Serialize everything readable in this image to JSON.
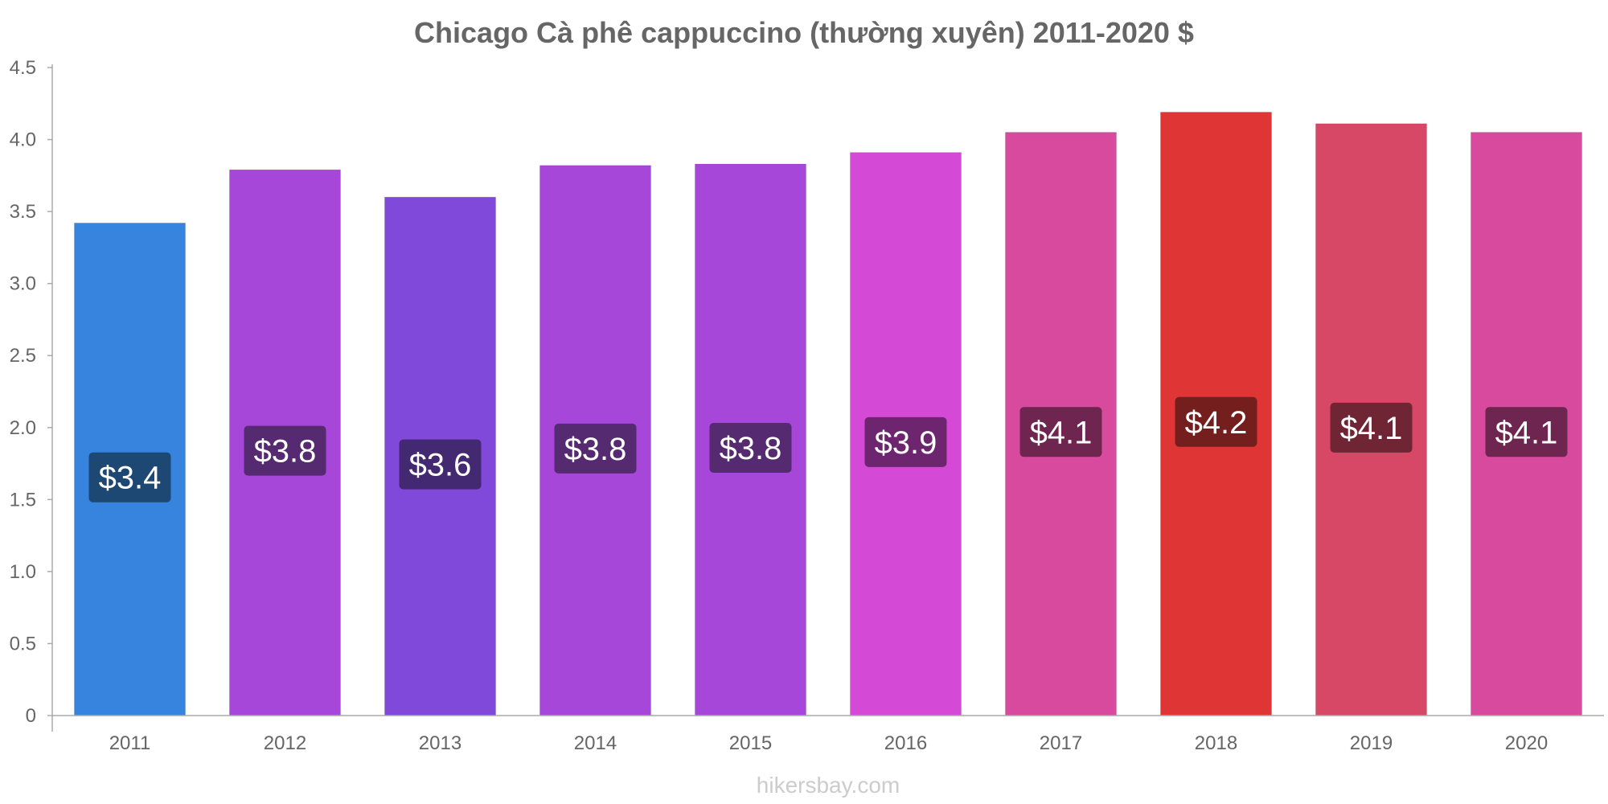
{
  "chart_data": {
    "type": "bar",
    "title": "Chicago Cà phê cappuccino (thường xuyên) 2011-2020 $",
    "categories": [
      "2011",
      "2012",
      "2013",
      "2014",
      "2015",
      "2016",
      "2017",
      "2018",
      "2019",
      "2020"
    ],
    "values": [
      3.42,
      3.79,
      3.6,
      3.82,
      3.83,
      3.91,
      4.05,
      4.19,
      4.11,
      4.05
    ],
    "value_labels": [
      "$3.4",
      "$3.8",
      "$3.6",
      "$3.8",
      "$3.8",
      "$3.9",
      "$4.1",
      "$4.2",
      "$4.1",
      "$4.1"
    ],
    "bar_colors": [
      "#3684de",
      "#a647d9",
      "#8149d9",
      "#a647d9",
      "#a647d9",
      "#d44ad6",
      "#d84a9e",
      "#e03535",
      "#d74866",
      "#d84a9e"
    ],
    "label_bg_colors": [
      "#1e4874",
      "#552a70",
      "#432972",
      "#552a70",
      "#552a70",
      "#6e2570",
      "#6e2550",
      "#751e1e",
      "#702535",
      "#6e2550"
    ],
    "ylim": [
      0,
      4.5
    ],
    "yticks": [
      "0",
      "0.5",
      "1.0",
      "1.5",
      "2.0",
      "2.5",
      "3.0",
      "3.5",
      "4.0",
      "4.5"
    ],
    "xlabel": "",
    "ylabel": "",
    "grid": false,
    "legend": "none"
  },
  "watermark": "hikersbay.com"
}
